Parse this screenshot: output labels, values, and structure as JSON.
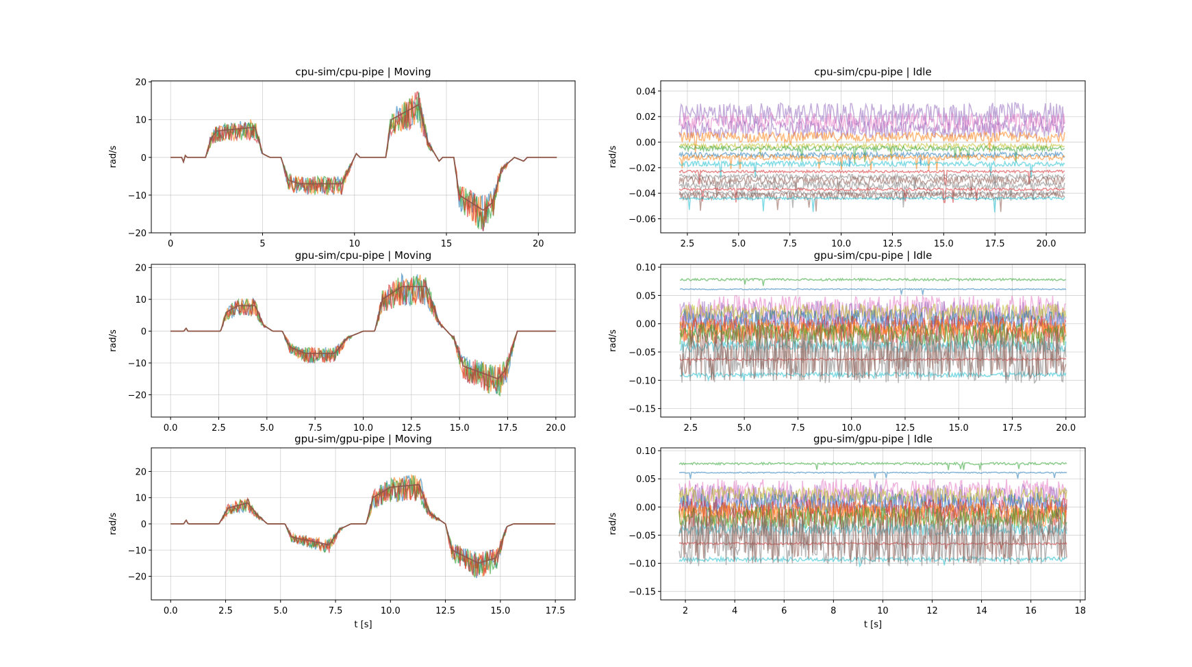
{
  "chart_data": [
    {
      "type": "line",
      "title": "cpu-sim/cpu-pipe | Moving",
      "xlabel": "",
      "ylabel": "rad/s",
      "xlim": [
        -1.05,
        22
      ],
      "ylim": [
        -20,
        20.3
      ],
      "grid": true,
      "xticks": [
        0,
        5,
        10,
        15,
        20
      ],
      "xtick_labels": [
        "0",
        "5",
        "10",
        "15",
        "20"
      ],
      "yticks": [
        -20,
        -10,
        0,
        10,
        20
      ],
      "ytick_labels": [
        "−20",
        "−10",
        "0",
        "10",
        "20"
      ],
      "profile": {
        "x": [
          0,
          0.6,
          0.7,
          0.8,
          0.9,
          1.9,
          2.2,
          2.5,
          4.6,
          5.0,
          5.4,
          6.0,
          6.4,
          7.0,
          9.3,
          9.9,
          10.1,
          10.3,
          11.7,
          12.0,
          13.5,
          14.0,
          14.6,
          14.8,
          15.4,
          15.7,
          17.0,
          17.5,
          18.0,
          18.7,
          19.2,
          19.4,
          21.0
        ],
        "y": [
          0,
          0,
          -1.2,
          0.5,
          0,
          0,
          5,
          7,
          8,
          1,
          0,
          0,
          -6,
          -7,
          -7,
          -1,
          1,
          0,
          0,
          10,
          14,
          4,
          -1,
          0,
          0,
          -10,
          -14,
          -12,
          -3,
          0,
          -1,
          0,
          0
        ]
      },
      "series": [
        {
          "color": "#1f77b4"
        },
        {
          "color": "#ff7f0e"
        },
        {
          "color": "#2ca02c"
        },
        {
          "color": "#d62728"
        },
        {
          "color": "#8c564b"
        }
      ]
    },
    {
      "type": "line",
      "title": "cpu-sim/cpu-pipe | Idle",
      "xlabel": "",
      "ylabel": "rad/s",
      "xlim": [
        1.2,
        21.9
      ],
      "ylim": [
        -0.071,
        0.048
      ],
      "grid": true,
      "xticks": [
        2.5,
        5,
        7.5,
        10,
        12.5,
        15,
        17.5,
        20
      ],
      "xtick_labels": [
        "2.5",
        "5.0",
        "7.5",
        "10.0",
        "12.5",
        "15.0",
        "17.5",
        "20.0"
      ],
      "yticks": [
        -0.06,
        -0.04,
        -0.02,
        0,
        0.02,
        0.04
      ],
      "ytick_labels": [
        "−0.06",
        "−0.04",
        "−0.02",
        "0.00",
        "0.02",
        "0.04"
      ],
      "x_range": [
        2.1,
        20.9
      ],
      "series": [
        {
          "color": "#9467bd",
          "level": 0.022,
          "noise": 0.009
        },
        {
          "color": "#e377c2",
          "level": 0.015,
          "noise": 0.008
        },
        {
          "color": "#9467bd",
          "level": 0.01,
          "noise": 0.007
        },
        {
          "color": "#ff7f0e",
          "level": 0.004,
          "noise": 0.004
        },
        {
          "color": "#bcbd22",
          "level": -0.003,
          "noise": 0.002
        },
        {
          "color": "#2ca02c",
          "level": -0.005,
          "noise": 0.002
        },
        {
          "color": "#1f77b4",
          "level": -0.01,
          "noise": 0.002
        },
        {
          "color": "#ff7f0e",
          "level": -0.012,
          "noise": 0.002
        },
        {
          "color": "#17becf",
          "level": -0.017,
          "noise": 0.002
        },
        {
          "color": "#d62728",
          "level": -0.023,
          "noise": 0.001
        },
        {
          "color": "#7f7f7f",
          "level": -0.027,
          "noise": 0.002
        },
        {
          "color": "#8c564b",
          "level": -0.03,
          "noise": 0.003
        },
        {
          "color": "#7f7f7f",
          "level": -0.034,
          "noise": 0.003
        },
        {
          "color": "#d62728",
          "level": -0.037,
          "noise": 0.001
        },
        {
          "color": "#7f7f7f",
          "level": -0.04,
          "noise": 0.002
        },
        {
          "color": "#8c564b",
          "level": -0.042,
          "noise": 0.003
        },
        {
          "color": "#17becf",
          "level": -0.044,
          "noise": 0.001
        }
      ]
    },
    {
      "type": "line",
      "title": "gpu-sim/cpu-pipe | Moving",
      "xlabel": "",
      "ylabel": "rad/s",
      "xlim": [
        -1.0,
        21.0
      ],
      "ylim": [
        -27,
        21
      ],
      "grid": true,
      "xticks": [
        0,
        2.5,
        5,
        7.5,
        10,
        12.5,
        15,
        17.5,
        20
      ],
      "xtick_labels": [
        "0.0",
        "2.5",
        "5.0",
        "7.5",
        "10.0",
        "12.5",
        "15.0",
        "17.5",
        "20.0"
      ],
      "yticks": [
        -20,
        -10,
        0,
        10,
        20
      ],
      "ytick_labels": [
        "−20",
        "−10",
        "0",
        "10",
        "20"
      ],
      "profile": {
        "x": [
          0,
          0.7,
          0.8,
          0.9,
          2.6,
          2.9,
          3.5,
          4.4,
          4.8,
          5.3,
          5.8,
          6.2,
          7.0,
          8.5,
          9.2,
          10.0,
          10.6,
          11.0,
          12.0,
          13.3,
          13.9,
          14.5,
          14.7,
          15.2,
          17.0,
          17.4,
          18.0,
          20.0
        ],
        "y": [
          0,
          0,
          1,
          0,
          0,
          6,
          8,
          8,
          2,
          0,
          0,
          -5,
          -7,
          -7,
          -2,
          0,
          0,
          10,
          14,
          14,
          3,
          -1,
          -2,
          -11,
          -15,
          -12,
          0,
          0
        ]
      },
      "series": [
        {
          "color": "#1f77b4"
        },
        {
          "color": "#ff7f0e"
        },
        {
          "color": "#2ca02c"
        },
        {
          "color": "#d62728"
        },
        {
          "color": "#8c564b"
        }
      ]
    },
    {
      "type": "line",
      "title": "gpu-sim/cpu-pipe | Idle",
      "xlabel": "",
      "ylabel": "rad/s",
      "xlim": [
        1.1,
        20.9
      ],
      "ylim": [
        -0.165,
        0.105
      ],
      "grid": true,
      "xticks": [
        2.5,
        5,
        7.5,
        10,
        12.5,
        15,
        17.5,
        20
      ],
      "xtick_labels": [
        "2.5",
        "5.0",
        "7.5",
        "10.0",
        "12.5",
        "15.0",
        "17.5",
        "20.0"
      ],
      "yticks": [
        -0.15,
        -0.1,
        -0.05,
        0,
        0.05,
        0.1
      ],
      "ytick_labels": [
        "−0.15",
        "−0.10",
        "−0.05",
        "0.00",
        "0.05",
        "0.10"
      ],
      "x_range": [
        2.0,
        20.0
      ],
      "series": [
        {
          "color": "#2ca02c",
          "level": 0.078,
          "noise": 0.002
        },
        {
          "color": "#1f77b4",
          "level": 0.061,
          "noise": 0.001
        },
        {
          "color": "#e377c2",
          "level": 0.025,
          "noise": 0.025
        },
        {
          "color": "#9467bd",
          "level": 0.015,
          "noise": 0.025
        },
        {
          "color": "#bcbd22",
          "level": 0.02,
          "noise": 0.015
        },
        {
          "color": "#1f77b4",
          "level": 0.005,
          "noise": 0.02
        },
        {
          "color": "#ff7f0e",
          "level": -0.005,
          "noise": 0.015
        },
        {
          "color": "#d62728",
          "level": -0.01,
          "noise": 0.025
        },
        {
          "color": "#ff7f0e",
          "level": -0.015,
          "noise": 0.02
        },
        {
          "color": "#2ca02c",
          "level": -0.02,
          "noise": 0.02
        },
        {
          "color": "#17becf",
          "level": -0.04,
          "noise": 0.01
        },
        {
          "color": "#d62728",
          "level": -0.063,
          "noise": 0.002
        },
        {
          "color": "#17becf",
          "level": -0.09,
          "noise": 0.004
        },
        {
          "color": "#7f7f7f",
          "level": -0.06,
          "noise": 0.045
        },
        {
          "color": "#8c564b",
          "level": -0.05,
          "noise": 0.05
        }
      ]
    },
    {
      "type": "line",
      "title": "gpu-sim/gpu-pipe | Moving",
      "xlabel": "t [s]",
      "ylabel": "rad/s",
      "xlim": [
        -0.88,
        18.4
      ],
      "ylim": [
        -29,
        29
      ],
      "grid": true,
      "xticks": [
        0,
        2.5,
        5,
        7.5,
        10,
        12.5,
        15,
        17.5
      ],
      "xtick_labels": [
        "0.0",
        "2.5",
        "5.0",
        "7.5",
        "10.0",
        "12.5",
        "15.0",
        "17.5"
      ],
      "yticks": [
        -20,
        -10,
        0,
        10,
        20
      ],
      "ytick_labels": [
        "−20",
        "−10",
        "0",
        "10",
        "20"
      ],
      "profile": {
        "x": [
          0,
          0.6,
          0.7,
          0.8,
          2.2,
          2.6,
          3.5,
          4.0,
          4.4,
          5.2,
          5.5,
          7.2,
          7.7,
          8.2,
          8.9,
          9.2,
          10.0,
          11.3,
          11.8,
          12.5,
          12.8,
          14.0,
          14.8,
          15.3,
          15.6,
          17.5
        ],
        "y": [
          0,
          0,
          1.5,
          0,
          0,
          6,
          8,
          3,
          0,
          0,
          -5,
          -8,
          -2,
          0,
          0,
          10,
          14,
          15,
          4,
          0,
          -10,
          -15,
          -13,
          -1,
          0,
          0
        ]
      },
      "series": [
        {
          "color": "#1f77b4"
        },
        {
          "color": "#ff7f0e"
        },
        {
          "color": "#2ca02c"
        },
        {
          "color": "#d62728"
        },
        {
          "color": "#8c564b"
        }
      ]
    },
    {
      "type": "line",
      "title": "gpu-sim/gpu-pipe | Idle",
      "xlabel": "t [s]",
      "ylabel": "rad/s",
      "xlim": [
        1.0,
        18.2
      ],
      "ylim": [
        -0.165,
        0.105
      ],
      "grid": true,
      "xticks": [
        2,
        4,
        6,
        8,
        10,
        12,
        14,
        16,
        18
      ],
      "xtick_labels": [
        "2",
        "4",
        "6",
        "8",
        "10",
        "12",
        "14",
        "16",
        "18"
      ],
      "yticks": [
        -0.15,
        -0.1,
        -0.05,
        0,
        0.05,
        0.1
      ],
      "ytick_labels": [
        "−0.15",
        "−0.10",
        "−0.05",
        "0.00",
        "0.05",
        "0.10"
      ],
      "x_range": [
        1.75,
        17.45
      ],
      "series": [
        {
          "color": "#2ca02c",
          "level": 0.077,
          "noise": 0.002
        },
        {
          "color": "#1f77b4",
          "level": 0.061,
          "noise": 0.001
        },
        {
          "color": "#e377c2",
          "level": 0.025,
          "noise": 0.025
        },
        {
          "color": "#9467bd",
          "level": 0.015,
          "noise": 0.025
        },
        {
          "color": "#bcbd22",
          "level": 0.02,
          "noise": 0.015
        },
        {
          "color": "#1f77b4",
          "level": 0.005,
          "noise": 0.02
        },
        {
          "color": "#ff7f0e",
          "level": -0.005,
          "noise": 0.015
        },
        {
          "color": "#d62728",
          "level": -0.01,
          "noise": 0.025
        },
        {
          "color": "#ff7f0e",
          "level": -0.015,
          "noise": 0.02
        },
        {
          "color": "#2ca02c",
          "level": -0.02,
          "noise": 0.02
        },
        {
          "color": "#17becf",
          "level": -0.04,
          "noise": 0.01
        },
        {
          "color": "#d62728",
          "level": -0.065,
          "noise": 0.002
        },
        {
          "color": "#17becf",
          "level": -0.093,
          "noise": 0.004
        },
        {
          "color": "#7f7f7f",
          "level": -0.06,
          "noise": 0.045
        },
        {
          "color": "#8c564b",
          "level": -0.05,
          "noise": 0.05
        }
      ]
    }
  ]
}
